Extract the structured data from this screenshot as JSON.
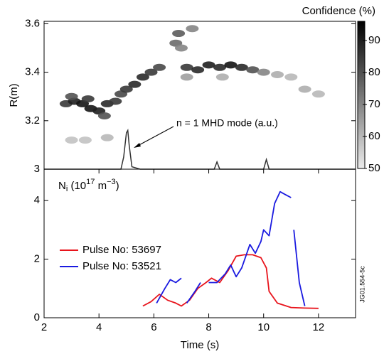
{
  "chart_data": [
    {
      "type": "heatmap",
      "ylabel": "R(m)",
      "colorbar_label": "Confidence (%)",
      "annotation": "n = 1 MHD mode (a.u.)",
      "xlim": [
        2,
        13.35
      ],
      "ylim": [
        3,
        3.61
      ],
      "yticks": [
        3,
        3.2,
        3.4,
        3.6
      ],
      "clim": [
        50,
        96
      ],
      "cticks": [
        50,
        60,
        70,
        80,
        90
      ],
      "x": [
        2.8,
        3.1,
        3.4,
        3.7,
        4.0,
        4.3,
        4.6,
        3.0,
        3.6,
        4.2,
        4.8,
        5.0,
        5.3,
        5.6,
        5.9,
        6.2,
        6.8,
        6.9,
        7.0,
        7.4,
        7.2,
        7.6,
        8.0,
        8.4,
        8.8,
        9.2,
        9.6,
        10.0,
        7.2,
        8.5,
        10.5,
        11.0,
        11.5,
        12.0,
        3.0,
        3.5,
        4.3
      ],
      "y": [
        3.27,
        3.28,
        3.27,
        3.25,
        3.24,
        3.27,
        3.28,
        3.3,
        3.29,
        3.22,
        3.31,
        3.33,
        3.35,
        3.38,
        3.4,
        3.42,
        3.52,
        3.56,
        3.5,
        3.58,
        3.42,
        3.41,
        3.43,
        3.42,
        3.43,
        3.42,
        3.41,
        3.4,
        3.38,
        3.38,
        3.39,
        3.38,
        3.33,
        3.31,
        3.12,
        3.12,
        3.13
      ],
      "values": [
        85,
        90,
        92,
        92,
        90,
        88,
        85,
        80,
        85,
        80,
        82,
        85,
        88,
        88,
        85,
        82,
        75,
        78,
        70,
        70,
        85,
        88,
        90,
        88,
        92,
        88,
        80,
        70,
        65,
        62,
        62,
        60,
        62,
        60,
        58,
        58,
        60
      ],
      "mode_trace": {
        "color": "#333333",
        "x": [
          2,
          4.8,
          4.9,
          5.0,
          5.05,
          5.1,
          5.2,
          5.5,
          8.2,
          8.3,
          8.4,
          10.0,
          10.1,
          10.2,
          13.35
        ],
        "y": [
          3.0,
          3.0,
          3.05,
          3.15,
          3.16,
          3.1,
          3.01,
          3.0,
          3.0,
          3.03,
          3.0,
          3.0,
          3.04,
          3.0,
          3.0
        ]
      }
    },
    {
      "type": "line",
      "ylabel": [
        "N",
        "i",
        " (10",
        "17",
        " m",
        "−3",
        ")"
      ],
      "xlabel": "Time (s)",
      "side_note": "JG01.554-5c",
      "xlim": [
        2,
        13.35
      ],
      "ylim": [
        0,
        5.07
      ],
      "xticks": [
        2,
        4,
        6,
        8,
        10,
        12
      ],
      "yticks": [
        0,
        2,
        4
      ],
      "series": [
        {
          "name": "Pulse No: 53697",
          "color": "#e8141c",
          "x": [
            5.6,
            5.9,
            6.2,
            6.5,
            6.8,
            7.0,
            7.3,
            7.6,
            7.9,
            8.1,
            8.4,
            8.7,
            9.0,
            9.3,
            9.6,
            9.9,
            10.1,
            10.2,
            10.5,
            11.0,
            11.5,
            12.0
          ],
          "values": [
            0.4,
            0.55,
            0.8,
            0.6,
            0.5,
            0.4,
            0.6,
            1.0,
            1.2,
            1.35,
            1.2,
            1.6,
            2.1,
            2.15,
            2.15,
            2.05,
            1.7,
            0.9,
            0.5,
            0.35,
            0.33,
            0.32
          ]
        },
        {
          "name": "Pulse No: 53521",
          "color": "#1a1ae0",
          "x": [
            6.1,
            6.4,
            6.6,
            6.8,
            7.0,
            7.1,
            7.2,
            7.5,
            7.7,
            7.8,
            8.0,
            8.3,
            8.6,
            8.8,
            9.0,
            9.2,
            9.5,
            9.7,
            9.9,
            10.0,
            10.2,
            10.4,
            10.6,
            10.8,
            11.0,
            11.05,
            11.1,
            11.3,
            11.5
          ],
          "values": [
            0.5,
            1.0,
            1.3,
            1.2,
            1.35,
            null,
            0.5,
            0.9,
            1.2,
            null,
            1.2,
            1.2,
            1.5,
            1.8,
            1.4,
            1.7,
            2.5,
            2.2,
            2.6,
            3.0,
            2.8,
            3.9,
            4.3,
            4.2,
            4.1,
            null,
            3.0,
            1.2,
            0.4
          ]
        }
      ]
    }
  ]
}
